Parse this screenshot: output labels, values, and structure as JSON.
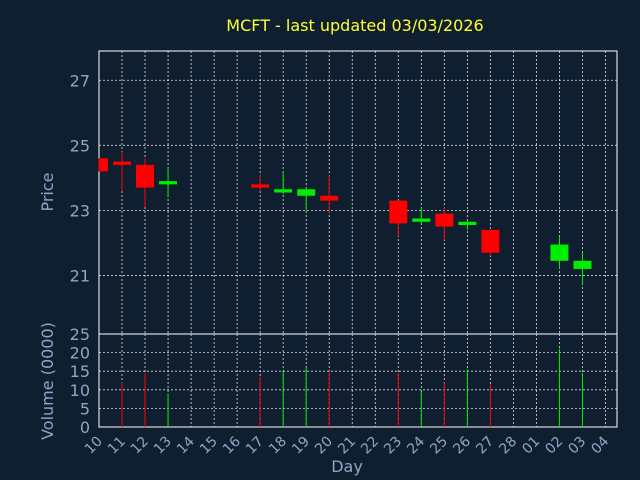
{
  "chart_data": {
    "type": "candlestick",
    "title": "MCFT - last updated 03/03/2026",
    "xlabel": "Day",
    "price_panel": {
      "ylabel": "Price",
      "ylim": [
        19.2,
        27.9
      ],
      "yticks": [
        21,
        23,
        25,
        27
      ],
      "grid": true
    },
    "volume_panel": {
      "ylabel": "Volume (0000)",
      "ylim": [
        0,
        25
      ],
      "yticks": [
        0,
        5,
        10,
        15,
        20,
        25
      ],
      "grid": true
    },
    "colors": {
      "up": "#00ee00",
      "down": "#ff0000",
      "background": "#0f1f30",
      "axis_text": "#8ea6c8",
      "title": "#ffff33"
    },
    "x_tick_labels": [
      "10",
      "11",
      "12",
      "13",
      "14",
      "15",
      "16",
      "17",
      "18",
      "19",
      "20",
      "21",
      "22",
      "23",
      "24",
      "25",
      "26",
      "27",
      "28",
      "01",
      "02",
      "03",
      "04"
    ],
    "candles": [
      {
        "day": "10",
        "open": 24.6,
        "high": 24.6,
        "low": 24.2,
        "close": 24.2,
        "volume": 0
      },
      {
        "day": "11",
        "open": 24.5,
        "high": 24.8,
        "low": 23.6,
        "close": 24.4,
        "volume": 12
      },
      {
        "day": "12",
        "open": 24.4,
        "high": 24.6,
        "low": 23.1,
        "close": 23.7,
        "volume": 14.5
      },
      {
        "day": "13",
        "open": 23.8,
        "high": 24.3,
        "low": 23.4,
        "close": 23.9,
        "volume": 9
      },
      {
        "day": "17",
        "open": 23.8,
        "high": 24.1,
        "low": 23.6,
        "close": 23.7,
        "volume": 13.5
      },
      {
        "day": "18",
        "open": 23.55,
        "high": 24.2,
        "low": 23.5,
        "close": 23.65,
        "volume": 15
      },
      {
        "day": "19",
        "open": 23.45,
        "high": 23.7,
        "low": 23.0,
        "close": 23.65,
        "volume": 16
      },
      {
        "day": "20",
        "open": 23.45,
        "high": 24.1,
        "low": 22.9,
        "close": 23.3,
        "volume": 15
      },
      {
        "day": "23",
        "open": 23.3,
        "high": 23.3,
        "low": 22.2,
        "close": 22.6,
        "volume": 14.5
      },
      {
        "day": "24",
        "open": 22.65,
        "high": 23.1,
        "low": 22.6,
        "close": 22.75,
        "volume": 9.5
      },
      {
        "day": "25",
        "open": 22.9,
        "high": 23.1,
        "low": 22.1,
        "close": 22.5,
        "volume": 12
      },
      {
        "day": "26",
        "open": 22.55,
        "high": 22.7,
        "low": 22.4,
        "close": 22.65,
        "volume": 15.5
      },
      {
        "day": "27",
        "open": 22.4,
        "high": 22.4,
        "low": 21.6,
        "close": 21.7,
        "volume": 11.5
      },
      {
        "day": "02",
        "open": 21.45,
        "high": 22.2,
        "low": 21.2,
        "close": 21.95,
        "volume": 21
      },
      {
        "day": "03",
        "open": 21.2,
        "high": 21.7,
        "low": 20.7,
        "close": 21.45,
        "volume": 14.5
      }
    ]
  }
}
